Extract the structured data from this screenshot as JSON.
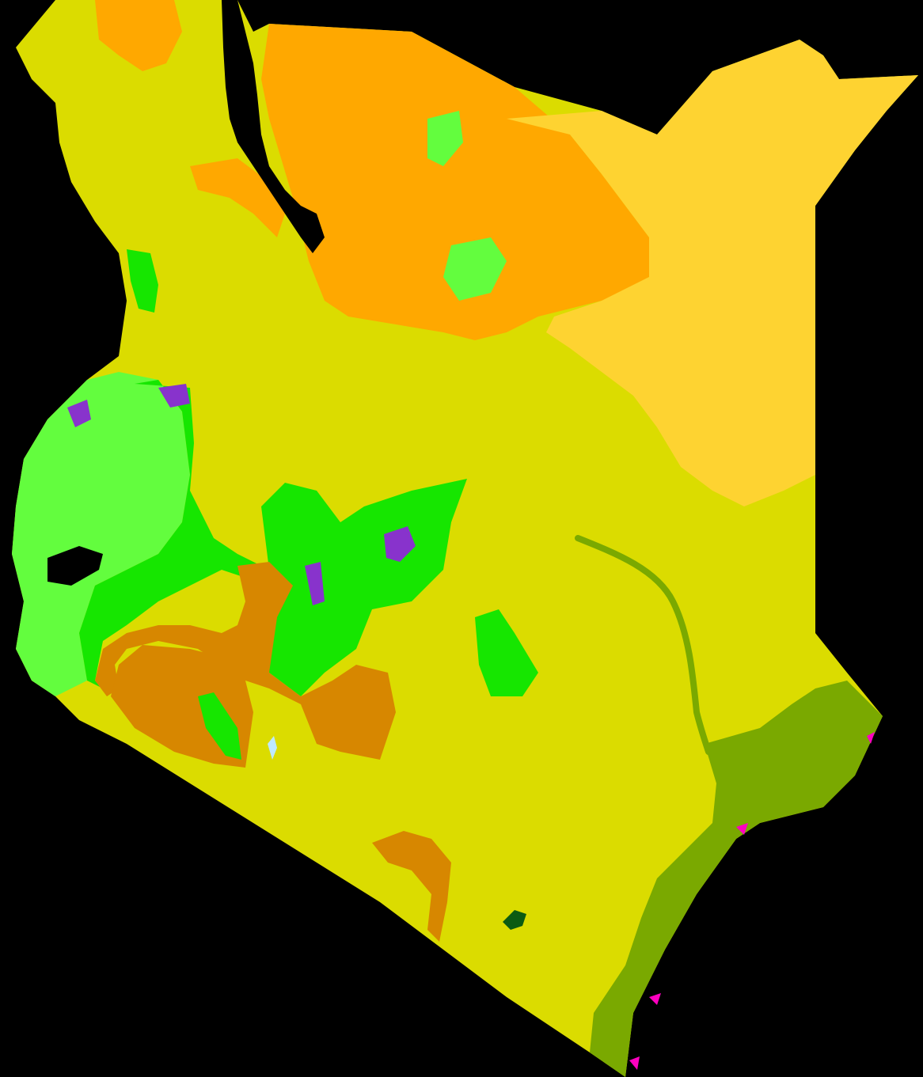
{
  "map": {
    "background_color": "#000000",
    "colors": {
      "steppe_hot": "#dbdc00",
      "desert_hot": "#ffa800",
      "desert_hot_pale": "#fed331",
      "savanna": "#7aa900",
      "highland_green": "#16e600",
      "highland_light_green": "#63fd3e",
      "highland_violet": "#8833cc",
      "steppe_cold": "#d78700",
      "water": "#000000",
      "glacier_speck": "#bfe9ff",
      "forest_dark": "#0c5b12",
      "mangrove_magenta": "#ff00c0"
    }
  }
}
